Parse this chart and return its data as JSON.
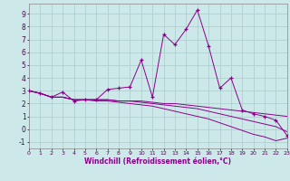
{
  "xlabel": "Windchill (Refroidissement éolien,°C)",
  "x_values": [
    0,
    1,
    2,
    3,
    4,
    5,
    6,
    7,
    8,
    9,
    10,
    11,
    12,
    13,
    14,
    15,
    16,
    17,
    18,
    19,
    20,
    21,
    22,
    23
  ],
  "line1_y": [
    3.0,
    2.8,
    2.5,
    2.9,
    2.2,
    2.3,
    2.3,
    3.1,
    3.2,
    3.3,
    5.4,
    2.5,
    7.4,
    6.6,
    7.8,
    9.3,
    6.5,
    3.2,
    4.0,
    1.5,
    1.2,
    1.0,
    0.7,
    -0.5
  ],
  "line2_y": [
    3.0,
    2.8,
    2.5,
    2.5,
    2.3,
    2.3,
    2.3,
    2.3,
    2.2,
    2.2,
    2.2,
    2.1,
    2.0,
    2.0,
    1.9,
    1.8,
    1.7,
    1.6,
    1.5,
    1.4,
    1.3,
    1.2,
    1.1,
    1.0
  ],
  "line3_y": [
    3.0,
    2.8,
    2.5,
    2.5,
    2.3,
    2.3,
    2.3,
    2.3,
    2.2,
    2.2,
    2.1,
    2.0,
    1.9,
    1.8,
    1.7,
    1.6,
    1.4,
    1.2,
    1.0,
    0.8,
    0.6,
    0.4,
    0.2,
    -0.2
  ],
  "line4_y": [
    3.0,
    2.8,
    2.5,
    2.5,
    2.3,
    2.3,
    2.2,
    2.2,
    2.1,
    2.0,
    1.9,
    1.8,
    1.6,
    1.4,
    1.2,
    1.0,
    0.8,
    0.5,
    0.2,
    -0.1,
    -0.4,
    -0.6,
    -0.9,
    -0.7
  ],
  "line_color": "#8B008B",
  "bg_color": "#cce8e8",
  "grid_color": "#aacccc",
  "ylim": [
    -1.5,
    9.8
  ],
  "xlim": [
    0,
    23
  ],
  "yticks": [
    -1,
    0,
    1,
    2,
    3,
    4,
    5,
    6,
    7,
    8,
    9
  ],
  "xticks": [
    0,
    1,
    2,
    3,
    4,
    5,
    6,
    7,
    8,
    9,
    10,
    11,
    12,
    13,
    14,
    15,
    16,
    17,
    18,
    19,
    20,
    21,
    22,
    23
  ]
}
